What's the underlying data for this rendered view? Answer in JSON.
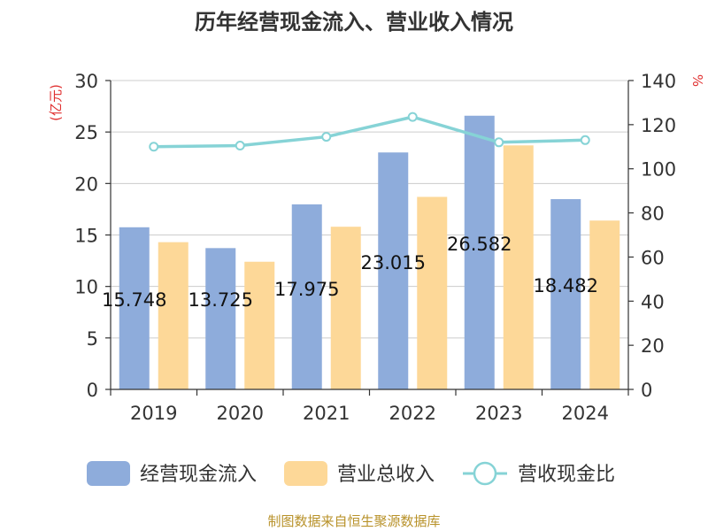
{
  "chart_data": {
    "type": "bar",
    "title": "历年经营现金流入、营业收入情况",
    "left_axis_unit": "(亿元)",
    "right_axis_unit": "%",
    "categories": [
      "2019",
      "2020",
      "2021",
      "2022",
      "2023",
      "2024"
    ],
    "series": [
      {
        "name": "经营现金流入",
        "type": "bar",
        "axis": "left",
        "color": "#8eacdb",
        "values": [
          15.748,
          13.725,
          17.975,
          23.015,
          26.582,
          18.482
        ],
        "labels": [
          "15.748",
          "13.725",
          "17.975",
          "23.015",
          "26.582",
          "18.482"
        ]
      },
      {
        "name": "营业总收入",
        "type": "bar",
        "axis": "left",
        "color": "#fdd898",
        "values": [
          14.3,
          12.4,
          15.8,
          18.7,
          23.7,
          16.4
        ]
      },
      {
        "name": "营收现金比",
        "type": "line",
        "axis": "right",
        "color": "#86d3d6",
        "values": [
          110,
          110.5,
          114.5,
          123.5,
          112,
          113
        ]
      }
    ],
    "left_axis": {
      "ylim": [
        0,
        30
      ],
      "ticks": [
        "0",
        "5",
        "10",
        "15",
        "20",
        "25",
        "30"
      ]
    },
    "right_axis": {
      "ylim": [
        0,
        140
      ],
      "ticks": [
        "0",
        "20",
        "40",
        "60",
        "80",
        "100",
        "120",
        "140"
      ]
    },
    "grid": true,
    "legend_position": "bottom"
  },
  "source_note": "制图数据来自恒生聚源数据库",
  "colors": {
    "title": "#333333",
    "axis_unit": "#e03030",
    "tick": "#333333",
    "axis_line": "#333333",
    "grid": "#cccccc",
    "source_note": "#b8922a"
  }
}
